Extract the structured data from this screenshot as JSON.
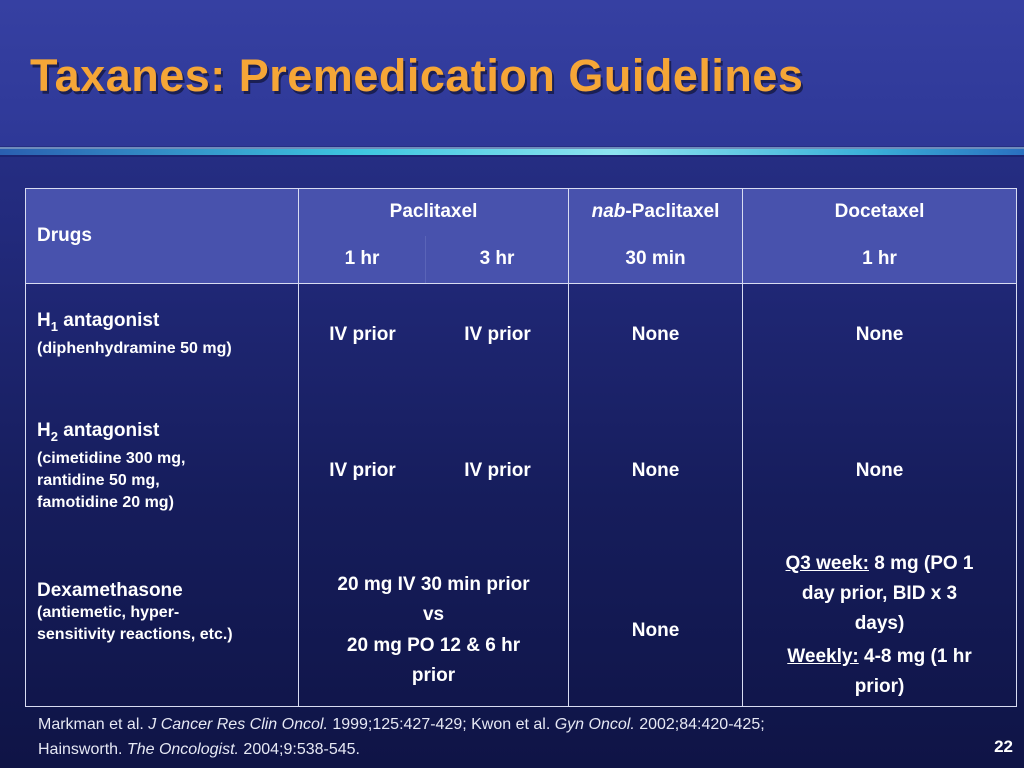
{
  "slide": {
    "title": "Taxanes: Premedication Guidelines",
    "page_number": "22"
  },
  "table": {
    "header": {
      "drugs_label": "Drugs",
      "paclitaxel": "Paclitaxel",
      "nab_prefix": "nab",
      "nab_suffix": "-Paclitaxel",
      "docetaxel": "Docetaxel",
      "pac_1hr": "1 hr",
      "pac_3hr": "3 hr",
      "nab_30min": "30 min",
      "doc_1hr": "1 hr"
    },
    "rows": [
      {
        "name": "H",
        "subscript": "1",
        "name_suffix": " antagonist",
        "note": "(diphenhydramine 50 mg)",
        "pac_1hr": "IV prior",
        "pac_3hr": "IV prior",
        "nab": "None",
        "doc": "None"
      },
      {
        "name": "H",
        "subscript": "2",
        "name_suffix": " antagonist",
        "note_lines": [
          "(cimetidine 300 mg,",
          "rantidine 50 mg,",
          "famotidine 20 mg)"
        ],
        "pac_1hr": "IV prior",
        "pac_3hr": "IV prior",
        "nab": "None",
        "doc": "None"
      },
      {
        "name": "Dexamethasone",
        "note_lines": [
          "(antiemetic, hyper-",
          "sensitivity reactions, etc.)"
        ],
        "pac_lines": [
          "20 mg IV 30 min prior",
          "vs",
          "20 mg PO 12 & 6 hr",
          "prior"
        ],
        "nab": "None",
        "doc_q3_label": "Q3 week:",
        "doc_q3_lines": [
          " 8 mg (PO 1",
          "day prior, BID x 3",
          "days)"
        ],
        "doc_weekly_label": "Weekly:",
        "doc_weekly_lines": [
          " 4-8 mg (1 hr",
          "prior)"
        ]
      }
    ]
  },
  "footer": {
    "ref_1a": "Markman et al. ",
    "ref_1b": "J Cancer Res Clin Oncol.",
    "ref_1c": " 1999;125:427-429; Kwon et al. ",
    "ref_1d": "Gyn Oncol.",
    "ref_1e": " 2002;84:420-425;",
    "ref_2a": "Hainsworth. ",
    "ref_2b": "The Oncologist.",
    "ref_2c": " 2004;9:538-545."
  },
  "colors": {
    "title": "#f5a637",
    "header_bg": "#4852ad",
    "background_top": "#2c3590",
    "background_bottom": "#0f1446",
    "divider_accent": "#3ec6e0"
  }
}
